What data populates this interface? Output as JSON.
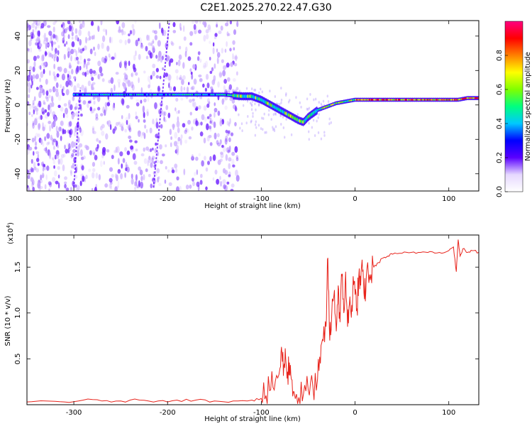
{
  "title": "C2E1.2025.270.22.47.G30",
  "chart_data": [
    {
      "type": "heatmap",
      "xlabel": "Height of straight line (km)",
      "ylabel": "Frequency (Hz)",
      "xlim": [
        -350,
        132
      ],
      "ylim": [
        -50,
        49
      ],
      "x_ticks": [
        -300,
        -200,
        -100,
        0,
        100
      ],
      "x_tick_labels": [
        "-300",
        "-200",
        "-100",
        "0",
        "100"
      ],
      "y_ticks": [
        -40,
        -20,
        0,
        20,
        40
      ],
      "y_tick_labels": [
        "-40",
        "-20",
        "0",
        "20",
        "40"
      ],
      "grid": false,
      "colorbar": {
        "label": "Normalized spectral amplitude",
        "range": [
          0,
          1
        ],
        "ticks": [
          0.0,
          0.2,
          0.4,
          0.6,
          0.8
        ],
        "tick_labels": [
          "0.0",
          "0.2",
          "0.4",
          "0.6",
          "0.8"
        ],
        "colors": [
          "#ffffff",
          "#e6d8ff",
          "#5a00ff",
          "#0000ff",
          "#00c8ff",
          "#00ff80",
          "#80ff00",
          "#ffff00",
          "#ff8000",
          "#ff0000",
          "#ff0080"
        ]
      },
      "ridge": {
        "x": [
          -300,
          -280,
          -260,
          -240,
          -220,
          -200,
          -180,
          -160,
          -140,
          -120,
          -110,
          -100,
          -90,
          -80,
          -70,
          -60,
          -55,
          -50,
          -45,
          -40,
          -30,
          -20,
          -10,
          0,
          20,
          40,
          60,
          80,
          100,
          110,
          120,
          132
        ],
        "y": [
          6,
          6,
          6,
          6,
          6,
          6,
          6,
          6,
          6,
          5,
          5,
          3,
          0,
          -3,
          -6,
          -9,
          -10,
          -7,
          -5,
          -3,
          -1,
          1,
          2,
          3,
          3,
          3,
          3,
          3,
          3,
          3,
          4,
          4
        ]
      }
    },
    {
      "type": "line",
      "xlabel": "Height of straight line (km)",
      "ylabel": "SNR (10 * v/v)",
      "y_multiplier_label": "(x10",
      "y_multiplier_exp": "4",
      "y_multiplier_close": ")",
      "xlim": [
        -350,
        132
      ],
      "ylim": [
        0,
        1.85
      ],
      "x_ticks": [
        -300,
        -200,
        -100,
        0,
        100
      ],
      "x_tick_labels": [
        "-300",
        "-200",
        "-100",
        "0",
        "100"
      ],
      "y_ticks": [
        0.5,
        1.0,
        1.5
      ],
      "y_tick_labels": [
        "0.5",
        "1.0",
        "1.5"
      ],
      "grid": false,
      "series": [
        {
          "color": "#e8241c",
          "x": [
            -350,
            -330,
            -310,
            -290,
            -270,
            -250,
            -230,
            -210,
            -190,
            -170,
            -150,
            -130,
            -110,
            -100,
            -95,
            -90,
            -85,
            -80,
            -78,
            -76,
            -74,
            -72,
            -70,
            -68,
            -65,
            -60,
            -55,
            -50,
            -45,
            -40,
            -37,
            -34,
            -31,
            -29,
            -27,
            -25,
            -22,
            -20,
            -18,
            -16,
            -14,
            -12,
            -10,
            -8,
            -6,
            -4,
            -2,
            0,
            2,
            4,
            6,
            8,
            10,
            12,
            14,
            17,
            20,
            25,
            30,
            35,
            40,
            50,
            60,
            70,
            80,
            90,
            100,
            105,
            108,
            110,
            112,
            115,
            120,
            125,
            132
          ],
          "y": [
            0.03,
            0.04,
            0.03,
            0.05,
            0.04,
            0.04,
            0.05,
            0.04,
            0.05,
            0.05,
            0.04,
            0.04,
            0.05,
            0.07,
            0.1,
            0.16,
            0.26,
            0.4,
            0.55,
            0.42,
            0.5,
            0.36,
            0.46,
            0.28,
            0.14,
            0.08,
            0.12,
            0.16,
            0.2,
            0.28,
            0.45,
            0.7,
            0.85,
            1.6,
            0.7,
            0.95,
            1.25,
            0.8,
            1.3,
            0.9,
            1.4,
            1.0,
            1.45,
            0.85,
            1.1,
            0.95,
            1.4,
            1.2,
            1.05,
            1.4,
            1.3,
            1.45,
            1.15,
            1.4,
            1.45,
            1.42,
            1.5,
            1.55,
            1.6,
            1.62,
            1.64,
            1.65,
            1.66,
            1.66,
            1.67,
            1.66,
            1.68,
            1.72,
            1.45,
            1.8,
            1.62,
            1.7,
            1.66,
            1.68,
            1.66
          ]
        }
      ]
    }
  ]
}
